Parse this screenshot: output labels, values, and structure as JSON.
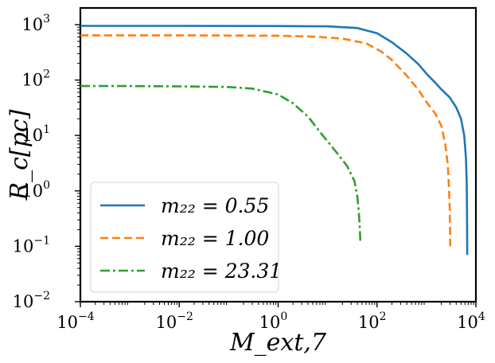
{
  "chart_data": {
    "type": "line",
    "xscale": "log",
    "yscale": "log",
    "xlim": [
      0.0001,
      10000
    ],
    "ylim": [
      0.01,
      2000
    ],
    "xlabel": "M_ext,7",
    "ylabel": "R_c[pc]",
    "legend_location": "lower-left",
    "x_ticks": [
      {
        "value": 0.0001,
        "base": "10",
        "exp": "−4"
      },
      {
        "value": 0.01,
        "base": "10",
        "exp": "−2"
      },
      {
        "value": 1,
        "base": "10",
        "exp": "0"
      },
      {
        "value": 100,
        "base": "10",
        "exp": "2"
      },
      {
        "value": 10000,
        "base": "10",
        "exp": "4"
      }
    ],
    "y_ticks": [
      {
        "value": 0.01,
        "base": "10",
        "exp": "−2"
      },
      {
        "value": 0.1,
        "base": "10",
        "exp": "−1"
      },
      {
        "value": 1,
        "base": "10",
        "exp": "0"
      },
      {
        "value": 10,
        "base": "10",
        "exp": "1"
      },
      {
        "value": 100,
        "base": "10",
        "exp": "2"
      },
      {
        "value": 1000,
        "base": "10",
        "exp": "3"
      }
    ],
    "series": [
      {
        "name": "m22 = 0.55",
        "legend_label": "m₂₂ = 0.55",
        "color": "#1f77b4",
        "style": "solid",
        "x": [
          0.0001,
          0.01,
          1,
          10,
          40,
          100,
          200,
          400,
          700,
          1000,
          1500,
          2000,
          3000,
          4000,
          5000,
          5800,
          6300,
          6500,
          6600,
          6650,
          6680
        ],
        "y": [
          950,
          950,
          945,
          930,
          870,
          700,
          480,
          300,
          190,
          130,
          90,
          68,
          48,
          32,
          20,
          10,
          4,
          1.5,
          0.5,
          0.15,
          0.07
        ]
      },
      {
        "name": "m22 = 1.00",
        "legend_label": "m₂₂ = 1.00",
        "color": "#ff7f0e",
        "style": "dashed",
        "x": [
          0.0001,
          0.01,
          1,
          5,
          20,
          60,
          120,
          200,
          400,
          700,
          1000,
          1500,
          2000,
          2400,
          2700,
          2850,
          2950,
          3000,
          3030
        ],
        "y": [
          640,
          640,
          630,
          610,
          560,
          460,
          330,
          230,
          120,
          65,
          40,
          25,
          15,
          7,
          3,
          1.2,
          0.5,
          0.2,
          0.1
        ]
      },
      {
        "name": "m22 = 23.31",
        "legend_label": "m₂₂ = 23.31",
        "color": "#2ca02c",
        "style": "dashdot",
        "x": [
          0.0001,
          0.001,
          0.01,
          0.1,
          0.3,
          1,
          2,
          4,
          8,
          15,
          25,
          35,
          40,
          43,
          45,
          46
        ],
        "y": [
          78,
          78,
          77,
          75,
          70,
          55,
          38,
          22,
          10,
          5,
          2.8,
          1.5,
          0.8,
          0.4,
          0.2,
          0.12
        ]
      }
    ]
  }
}
